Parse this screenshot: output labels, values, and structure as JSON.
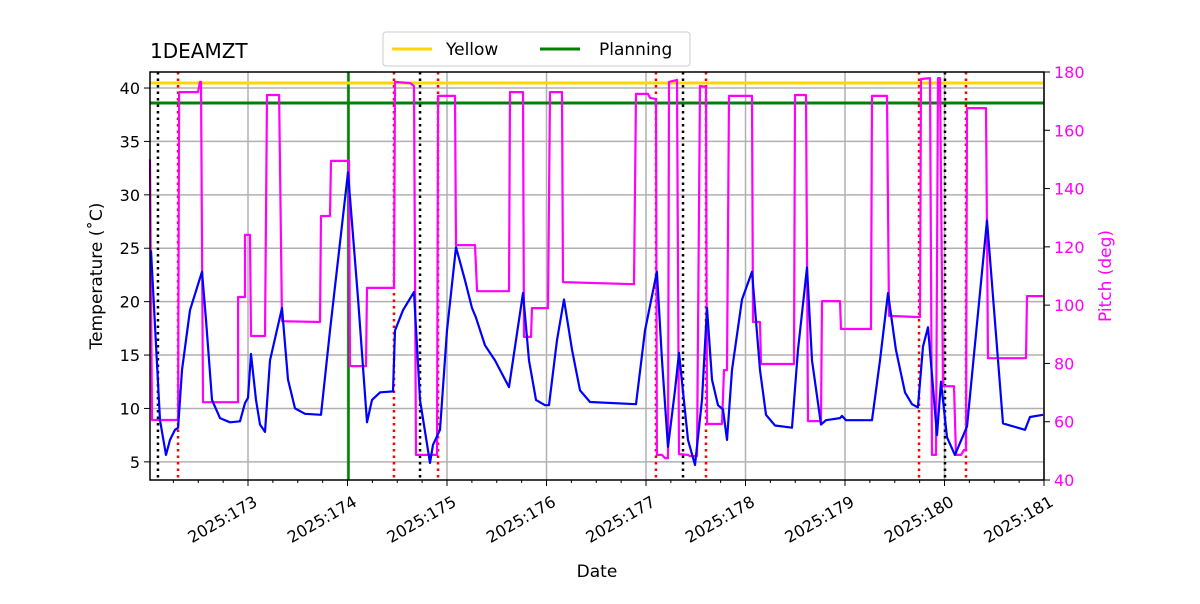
{
  "chart_data": {
    "type": "line",
    "title": "1DEAMZT",
    "xlabel": "Date",
    "ylabel": "Temperature ($^\\circ$C)",
    "ylabel_display": "Temperature (˚C)",
    "y2label": "Pitch (deg)",
    "xlim": [
      172.015,
      181.0
    ],
    "ylim": [
      3.3,
      41.5
    ],
    "y2lim": [
      40,
      180
    ],
    "grid": true,
    "legend_position": "top-center",
    "x_ticks": [
      173,
      174,
      175,
      176,
      177,
      178,
      179,
      180,
      181
    ],
    "x_tick_labels": [
      "2025:173",
      "2025:174",
      "2025:175",
      "2025:176",
      "2025:177",
      "2025:178",
      "2025:179",
      "2025:180",
      "2025:181"
    ],
    "y_ticks": [
      5,
      10,
      15,
      20,
      25,
      30,
      35,
      40
    ],
    "y_tick_labels": [
      "5",
      "10",
      "15",
      "20",
      "25",
      "30",
      "35",
      "40"
    ],
    "y2_ticks": [
      40,
      60,
      80,
      100,
      120,
      140,
      160,
      180
    ],
    "y2_tick_labels": [
      "40",
      "60",
      "80",
      "100",
      "120",
      "140",
      "160",
      "180"
    ],
    "colors": {
      "temperature": "#0000ff",
      "pitch": "#ff00ff",
      "yellow": "#ffd700",
      "planning": "#008000",
      "safe_mode": "#000000",
      "event": "#ff0000",
      "pitch_axis": "#ff00ff"
    },
    "legend": [
      {
        "name": "Yellow",
        "color": "#ffd700"
      },
      {
        "name": "Planning",
        "color": "#008000"
      }
    ],
    "hlines": [
      {
        "name": "Yellow",
        "value": 40.47
      },
      {
        "name": "Planning",
        "value": 38.6
      }
    ],
    "vline_planning": 174.01,
    "vlines_black_dotted": [
      172.095,
      174.729,
      177.372,
      180.005
    ],
    "vlines_red_dotted": [
      172.297,
      174.467,
      174.91,
      177.1,
      177.603,
      179.744,
      180.216
    ],
    "series": [
      {
        "name": "Temperature",
        "axis": "left",
        "points": [
          [
            172.025,
            24.8
          ],
          [
            172.116,
            8.9
          ],
          [
            172.176,
            5.65
          ],
          [
            172.216,
            7.05
          ],
          [
            172.266,
            8.0
          ],
          [
            172.297,
            8.2
          ],
          [
            172.337,
            13.6
          ],
          [
            172.417,
            19.2
          ],
          [
            172.538,
            22.8
          ],
          [
            172.578,
            18.3
          ],
          [
            172.638,
            10.8
          ],
          [
            172.719,
            9.1
          ],
          [
            172.819,
            8.7
          ],
          [
            172.92,
            8.8
          ],
          [
            172.97,
            10.5
          ],
          [
            173.0,
            11.0
          ],
          [
            173.03,
            15.1
          ],
          [
            173.08,
            10.8
          ],
          [
            173.121,
            8.5
          ],
          [
            173.171,
            7.8
          ],
          [
            173.221,
            14.5
          ],
          [
            173.342,
            19.4
          ],
          [
            173.402,
            12.7
          ],
          [
            173.472,
            10.0
          ],
          [
            173.573,
            9.5
          ],
          [
            173.734,
            9.4
          ],
          [
            173.824,
            17.3
          ],
          [
            174.005,
            32.1
          ],
          [
            174.106,
            20.2
          ],
          [
            174.196,
            8.7
          ],
          [
            174.246,
            10.8
          ],
          [
            174.327,
            11.5
          ],
          [
            174.457,
            11.6
          ],
          [
            174.477,
            17.3
          ],
          [
            174.558,
            19.2
          ],
          [
            174.668,
            20.9
          ],
          [
            174.729,
            10.8
          ],
          [
            174.829,
            4.9
          ],
          [
            174.859,
            6.6
          ],
          [
            174.93,
            8.0
          ],
          [
            175.0,
            17.3
          ],
          [
            175.09,
            25.1
          ],
          [
            175.181,
            22.0
          ],
          [
            175.251,
            19.4
          ],
          [
            175.291,
            18.5
          ],
          [
            175.382,
            15.9
          ],
          [
            175.482,
            14.5
          ],
          [
            175.623,
            12.0
          ],
          [
            175.764,
            20.8
          ],
          [
            175.824,
            14.5
          ],
          [
            175.894,
            10.8
          ],
          [
            175.985,
            10.3
          ],
          [
            176.025,
            10.3
          ],
          [
            176.105,
            16.4
          ],
          [
            176.176,
            20.2
          ],
          [
            176.256,
            15.5
          ],
          [
            176.337,
            11.7
          ],
          [
            176.437,
            10.6
          ],
          [
            176.899,
            10.4
          ],
          [
            176.99,
            17.3
          ],
          [
            177.11,
            22.8
          ],
          [
            177.161,
            14.5
          ],
          [
            177.221,
            6.4
          ],
          [
            177.291,
            11.7
          ],
          [
            177.332,
            15.2
          ],
          [
            177.422,
            7.05
          ],
          [
            177.492,
            4.7
          ],
          [
            177.563,
            10.8
          ],
          [
            177.613,
            19.4
          ],
          [
            177.663,
            12.7
          ],
          [
            177.724,
            10.3
          ],
          [
            177.774,
            9.9
          ],
          [
            177.814,
            7.05
          ],
          [
            177.864,
            13.6
          ],
          [
            177.965,
            20.2
          ],
          [
            178.065,
            22.8
          ],
          [
            178.146,
            13.6
          ],
          [
            178.206,
            9.4
          ],
          [
            178.296,
            8.4
          ],
          [
            178.467,
            8.2
          ],
          [
            178.528,
            15.5
          ],
          [
            178.618,
            23.2
          ],
          [
            178.668,
            14.5
          ],
          [
            178.759,
            8.5
          ],
          [
            178.809,
            8.9
          ],
          [
            178.95,
            9.1
          ],
          [
            178.97,
            9.3
          ],
          [
            179.01,
            8.9
          ],
          [
            179.271,
            8.9
          ],
          [
            179.352,
            14.5
          ],
          [
            179.432,
            20.8
          ],
          [
            179.512,
            15.5
          ],
          [
            179.603,
            11.5
          ],
          [
            179.673,
            10.4
          ],
          [
            179.733,
            10.1
          ],
          [
            179.784,
            15.8
          ],
          [
            179.834,
            17.6
          ],
          [
            179.925,
            7.5
          ],
          [
            179.965,
            12.5
          ],
          [
            180.025,
            7.3
          ],
          [
            180.105,
            5.65
          ],
          [
            180.226,
            8.3
          ],
          [
            180.427,
            27.6
          ],
          [
            180.588,
            8.6
          ],
          [
            180.809,
            8.0
          ],
          [
            180.859,
            9.2
          ],
          [
            180.99,
            9.4
          ]
        ]
      },
      {
        "name": "Pitch",
        "axis": "right",
        "points": [
          [
            172.015,
            150
          ],
          [
            172.035,
            60.6
          ],
          [
            172.297,
            60.6
          ],
          [
            172.307,
            173.1
          ],
          [
            172.497,
            173.1
          ],
          [
            172.518,
            176.6
          ],
          [
            172.528,
            176.6
          ],
          [
            172.548,
            66.7
          ],
          [
            172.9,
            66.7
          ],
          [
            172.9,
            102.8
          ],
          [
            172.97,
            102.8
          ],
          [
            172.97,
            124.1
          ],
          [
            173.02,
            124.1
          ],
          [
            173.03,
            89.4
          ],
          [
            173.171,
            89.4
          ],
          [
            173.191,
            172.1
          ],
          [
            173.312,
            172.1
          ],
          [
            173.342,
            94.5
          ],
          [
            173.724,
            94.2
          ],
          [
            173.734,
            130.6
          ],
          [
            173.824,
            130.6
          ],
          [
            173.834,
            149.5
          ],
          [
            174.015,
            149.5
          ],
          [
            174.025,
            79.1
          ],
          [
            174.186,
            79.1
          ],
          [
            174.196,
            105.9
          ],
          [
            174.467,
            105.9
          ],
          [
            174.477,
            176.6
          ],
          [
            174.628,
            176.2
          ],
          [
            174.668,
            175.2
          ],
          [
            174.688,
            48.6
          ],
          [
            174.899,
            48.6
          ],
          [
            174.91,
            171.8
          ],
          [
            175.08,
            171.8
          ],
          [
            175.09,
            120.6
          ],
          [
            175.281,
            120.6
          ],
          [
            175.302,
            104.8
          ],
          [
            175.623,
            104.8
          ],
          [
            175.633,
            173.1
          ],
          [
            175.764,
            173.1
          ],
          [
            175.774,
            89.1
          ],
          [
            175.844,
            89.1
          ],
          [
            175.854,
            99.0
          ],
          [
            176.015,
            99.0
          ],
          [
            176.035,
            173.1
          ],
          [
            176.156,
            173.1
          ],
          [
            176.166,
            107.9
          ],
          [
            176.879,
            107.2
          ],
          [
            176.899,
            172.5
          ],
          [
            177.02,
            172.5
          ],
          [
            177.04,
            171.1
          ],
          [
            177.1,
            170.7
          ],
          [
            177.11,
            48.6
          ],
          [
            177.161,
            48.6
          ],
          [
            177.191,
            47.5
          ],
          [
            177.221,
            47.5
          ],
          [
            177.231,
            176.6
          ],
          [
            177.312,
            177.3
          ],
          [
            177.332,
            48.9
          ],
          [
            177.422,
            48.6
          ],
          [
            177.442,
            48.2
          ],
          [
            177.513,
            48.2
          ],
          [
            177.543,
            175.2
          ],
          [
            177.603,
            174.9
          ],
          [
            177.613,
            59.2
          ],
          [
            177.764,
            59.2
          ],
          [
            177.784,
            77.7
          ],
          [
            177.814,
            77.7
          ],
          [
            177.834,
            171.8
          ],
          [
            178.065,
            171.8
          ],
          [
            178.075,
            94.2
          ],
          [
            178.146,
            94.2
          ],
          [
            178.156,
            79.8
          ],
          [
            178.487,
            79.8
          ],
          [
            178.497,
            172.1
          ],
          [
            178.608,
            172.1
          ],
          [
            178.628,
            60.2
          ],
          [
            178.759,
            60.2
          ],
          [
            178.769,
            101.4
          ],
          [
            178.95,
            101.4
          ],
          [
            178.96,
            91.8
          ],
          [
            179.261,
            91.8
          ],
          [
            179.271,
            171.8
          ],
          [
            179.422,
            171.8
          ],
          [
            179.442,
            96.3
          ],
          [
            179.754,
            95.9
          ],
          [
            179.764,
            177.6
          ],
          [
            179.854,
            177.9
          ],
          [
            179.874,
            48.6
          ],
          [
            179.915,
            48.6
          ],
          [
            179.935,
            177.9
          ],
          [
            179.955,
            177.9
          ],
          [
            179.985,
            72.2
          ],
          [
            180.095,
            72.2
          ],
          [
            180.116,
            48.6
          ],
          [
            180.166,
            48.6
          ],
          [
            180.196,
            50.3
          ],
          [
            180.216,
            50.3
          ],
          [
            180.226,
            167.6
          ],
          [
            180.417,
            167.6
          ],
          [
            180.437,
            81.8
          ],
          [
            180.819,
            81.8
          ],
          [
            180.829,
            103.1
          ],
          [
            181.0,
            103.1
          ]
        ]
      }
    ]
  }
}
